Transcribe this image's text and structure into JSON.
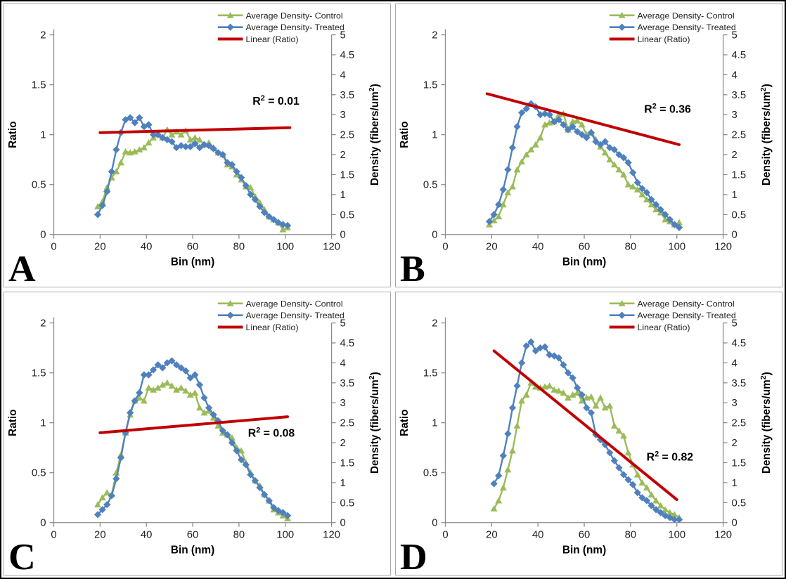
{
  "colors": {
    "control_green": "#9BBB59",
    "treated_blue": "#4F81BD",
    "trend_red": "#C00000",
    "axis_gray": "#8C8C8C",
    "text_dark": "#1F1F1F",
    "panel_border": "#A9A9A9",
    "outer_border": "#000000"
  },
  "legend": [
    {
      "label": "Average Density- Control",
      "color": "#9BBB59",
      "marker": "triangle"
    },
    {
      "label": "Average Density- Treated",
      "color": "#4F81BD",
      "marker": "diamond"
    },
    {
      "label": "Linear (Ratio)",
      "color": "#C00000",
      "marker": "line"
    }
  ],
  "axes": {
    "x": {
      "label": "Bin (nm)",
      "range": [
        0,
        120
      ],
      "ticks": [
        "0",
        "20",
        "40",
        "60",
        "80",
        "100",
        "120"
      ]
    },
    "y_left": {
      "label": "Ratio",
      "range": [
        0,
        2
      ],
      "ticks": [
        "0",
        "0.5",
        "1",
        "1.5",
        "2"
      ]
    },
    "y_right": {
      "label_base": "Density (fibers/um",
      "label_sup": "2",
      "label_end": ")",
      "range": [
        0,
        5
      ],
      "ticks": [
        "0",
        "0.5",
        "1",
        "1.5",
        "2",
        "2.5",
        "3",
        "3.5",
        "4",
        "4.5",
        "5"
      ]
    },
    "grid": "off",
    "legend_position": "top-right-inside"
  },
  "chart_data": [
    {
      "id": "A",
      "type": "line",
      "corner_label": "A",
      "r2_base": "R",
      "r2_sup": "2",
      "r2_rest": " = 0.01",
      "r2_value": 0.01,
      "r2_pos": {
        "x": 96,
        "y": 1.3
      },
      "trendline": {
        "name": "Linear (Ratio)",
        "x": [
          20,
          102
        ],
        "y": [
          1.02,
          1.07
        ]
      },
      "series": [
        {
          "name": "Average Density- Control",
          "marker": "triangle",
          "color": "#9BBB59",
          "x": [
            19,
            21,
            23,
            25,
            27,
            29,
            31,
            33,
            35,
            37,
            39,
            41,
            43,
            45,
            47,
            49,
            51,
            53,
            55,
            57,
            59,
            61,
            63,
            65,
            67,
            69,
            71,
            73,
            75,
            77,
            79,
            81,
            83,
            85,
            87,
            89,
            91,
            93,
            95,
            97,
            99,
            101
          ],
          "y": [
            0.28,
            0.33,
            0.47,
            0.57,
            0.63,
            0.72,
            0.83,
            0.82,
            0.83,
            0.85,
            0.87,
            0.92,
            0.97,
            1.0,
            0.97,
            1.05,
            1.0,
            1.03,
            1.0,
            1.04,
            0.95,
            0.97,
            0.95,
            0.9,
            0.92,
            0.87,
            0.82,
            0.8,
            0.7,
            0.68,
            0.6,
            0.55,
            0.48,
            0.47,
            0.38,
            0.32,
            0.25,
            0.18,
            0.15,
            0.12,
            0.05,
            0.07
          ]
        },
        {
          "name": "Average Density- Treated",
          "marker": "diamond",
          "color": "#4F81BD",
          "x": [
            19,
            21,
            23,
            25,
            27,
            29,
            31,
            33,
            35,
            37,
            39,
            41,
            43,
            45,
            47,
            49,
            51,
            53,
            55,
            57,
            59,
            61,
            63,
            65,
            67,
            69,
            71,
            73,
            75,
            77,
            79,
            81,
            83,
            85,
            87,
            89,
            91,
            93,
            95,
            97,
            99,
            101
          ],
          "y": [
            0.2,
            0.29,
            0.43,
            0.63,
            0.85,
            1.02,
            1.15,
            1.17,
            1.12,
            1.17,
            1.08,
            1.1,
            1.0,
            1.0,
            0.97,
            0.95,
            0.93,
            0.87,
            0.89,
            0.88,
            0.88,
            0.91,
            0.87,
            0.9,
            0.89,
            0.86,
            0.82,
            0.8,
            0.72,
            0.7,
            0.63,
            0.57,
            0.49,
            0.4,
            0.35,
            0.28,
            0.22,
            0.18,
            0.15,
            0.12,
            0.1,
            0.09
          ]
        }
      ]
    },
    {
      "id": "B",
      "type": "line",
      "corner_label": "B",
      "r2_base": "R",
      "r2_sup": "2",
      "r2_rest": " = 0.36",
      "r2_value": 0.36,
      "r2_pos": {
        "x": 96,
        "y": 1.22
      },
      "trendline": {
        "name": "Linear (Ratio)",
        "x": [
          18,
          101
        ],
        "y": [
          1.41,
          0.9
        ]
      },
      "series": [
        {
          "name": "Average Density- Control",
          "marker": "triangle",
          "color": "#9BBB59",
          "x": [
            19,
            21,
            23,
            25,
            27,
            29,
            31,
            33,
            35,
            37,
            39,
            41,
            43,
            45,
            47,
            49,
            51,
            53,
            55,
            57,
            59,
            61,
            63,
            65,
            67,
            69,
            71,
            73,
            75,
            77,
            79,
            81,
            83,
            85,
            87,
            89,
            91,
            93,
            95,
            97,
            99,
            101
          ],
          "y": [
            0.1,
            0.14,
            0.18,
            0.3,
            0.42,
            0.48,
            0.65,
            0.73,
            0.8,
            0.85,
            0.9,
            0.97,
            1.1,
            1.12,
            1.13,
            1.2,
            1.21,
            1.05,
            1.13,
            1.14,
            1.1,
            1.0,
            1.03,
            0.95,
            0.88,
            0.82,
            0.75,
            0.7,
            0.65,
            0.6,
            0.5,
            0.48,
            0.45,
            0.4,
            0.35,
            0.3,
            0.25,
            0.22,
            0.15,
            0.13,
            0.1,
            0.12
          ]
        },
        {
          "name": "Average Density- Treated",
          "marker": "diamond",
          "color": "#4F81BD",
          "x": [
            19,
            21,
            23,
            25,
            27,
            29,
            31,
            33,
            35,
            37,
            39,
            41,
            43,
            45,
            47,
            49,
            51,
            53,
            55,
            57,
            59,
            61,
            63,
            65,
            67,
            69,
            71,
            73,
            75,
            77,
            79,
            81,
            83,
            85,
            87,
            89,
            91,
            93,
            95,
            97,
            99,
            101
          ],
          "y": [
            0.13,
            0.2,
            0.3,
            0.45,
            0.65,
            0.87,
            1.08,
            1.22,
            1.26,
            1.31,
            1.28,
            1.2,
            1.21,
            1.2,
            1.13,
            1.15,
            1.1,
            1.05,
            1.08,
            1.03,
            1.0,
            0.97,
            1.02,
            0.93,
            0.9,
            0.93,
            0.87,
            0.85,
            0.8,
            0.77,
            0.72,
            0.62,
            0.52,
            0.46,
            0.42,
            0.35,
            0.3,
            0.25,
            0.2,
            0.15,
            0.1,
            0.07
          ]
        }
      ]
    },
    {
      "id": "C",
      "type": "line",
      "corner_label": "C",
      "r2_base": "R",
      "r2_sup": "2",
      "r2_rest": " = 0.08",
      "r2_value": 0.08,
      "r2_pos": {
        "x": 94,
        "y": 0.86
      },
      "trendline": {
        "name": "Linear (Ratio)",
        "x": [
          20,
          101
        ],
        "y": [
          0.9,
          1.06
        ]
      },
      "series": [
        {
          "name": "Average Density- Control",
          "marker": "triangle",
          "color": "#9BBB59",
          "x": [
            19,
            21,
            23,
            25,
            27,
            29,
            31,
            33,
            35,
            37,
            39,
            41,
            43,
            45,
            47,
            49,
            51,
            53,
            55,
            57,
            59,
            61,
            63,
            65,
            67,
            69,
            71,
            73,
            75,
            77,
            79,
            81,
            83,
            85,
            87,
            89,
            91,
            93,
            95,
            97,
            99,
            101
          ],
          "y": [
            0.18,
            0.25,
            0.3,
            0.28,
            0.5,
            0.68,
            0.9,
            1.08,
            1.22,
            1.25,
            1.22,
            1.35,
            1.33,
            1.35,
            1.38,
            1.4,
            1.37,
            1.33,
            1.35,
            1.32,
            1.28,
            1.3,
            1.15,
            1.1,
            1.12,
            1.05,
            0.97,
            0.9,
            0.88,
            0.85,
            0.75,
            0.72,
            0.6,
            0.5,
            0.42,
            0.37,
            0.28,
            0.22,
            0.13,
            0.1,
            0.07,
            0.04
          ]
        },
        {
          "name": "Average Density- Treated",
          "marker": "diamond",
          "color": "#4F81BD",
          "x": [
            19,
            21,
            23,
            25,
            27,
            29,
            31,
            33,
            35,
            37,
            39,
            41,
            43,
            45,
            47,
            49,
            51,
            53,
            55,
            57,
            59,
            61,
            63,
            65,
            67,
            69,
            71,
            73,
            75,
            77,
            79,
            81,
            83,
            85,
            87,
            89,
            91,
            93,
            95,
            97,
            99,
            101
          ],
          "y": [
            0.08,
            0.13,
            0.18,
            0.27,
            0.44,
            0.65,
            0.9,
            1.1,
            1.22,
            1.3,
            1.48,
            1.48,
            1.53,
            1.58,
            1.55,
            1.6,
            1.62,
            1.58,
            1.55,
            1.52,
            1.45,
            1.48,
            1.38,
            1.25,
            1.15,
            1.08,
            1.02,
            0.92,
            0.88,
            0.8,
            0.72,
            0.63,
            0.58,
            0.48,
            0.42,
            0.35,
            0.28,
            0.22,
            0.15,
            0.12,
            0.1,
            0.07
          ]
        }
      ]
    },
    {
      "id": "D",
      "type": "line",
      "corner_label": "D",
      "r2_base": "R",
      "r2_sup": "2",
      "r2_rest": " = 0.82",
      "r2_value": 0.82,
      "r2_pos": {
        "x": 97,
        "y": 0.62
      },
      "trendline": {
        "name": "Linear (Ratio)",
        "x": [
          21,
          100
        ],
        "y": [
          1.72,
          0.23
        ]
      },
      "series": [
        {
          "name": "Average Density- Control",
          "marker": "triangle",
          "color": "#9BBB59",
          "x": [
            21,
            23,
            25,
            27,
            29,
            31,
            33,
            35,
            37,
            39,
            41,
            43,
            45,
            47,
            49,
            51,
            53,
            55,
            57,
            59,
            61,
            63,
            65,
            67,
            69,
            71,
            73,
            75,
            77,
            79,
            81,
            83,
            85,
            87,
            89,
            91,
            93,
            95,
            97,
            99,
            101
          ],
          "y": [
            0.14,
            0.22,
            0.35,
            0.53,
            0.72,
            0.97,
            1.22,
            1.28,
            1.4,
            1.36,
            1.35,
            1.36,
            1.37,
            1.33,
            1.32,
            1.3,
            1.25,
            1.28,
            1.3,
            1.22,
            1.25,
            1.26,
            1.17,
            1.25,
            1.15,
            1.17,
            0.97,
            0.92,
            0.87,
            0.7,
            0.58,
            0.48,
            0.4,
            0.35,
            0.28,
            0.22,
            0.17,
            0.13,
            0.1,
            0.08,
            0.05
          ]
        },
        {
          "name": "Average Density- Treated",
          "marker": "diamond",
          "color": "#4F81BD",
          "x": [
            21,
            23,
            25,
            27,
            29,
            31,
            33,
            35,
            37,
            39,
            41,
            43,
            45,
            47,
            49,
            51,
            53,
            55,
            57,
            59,
            61,
            63,
            65,
            67,
            69,
            71,
            73,
            75,
            77,
            79,
            81,
            83,
            85,
            87,
            89,
            91,
            93,
            95,
            97,
            99,
            101
          ],
          "y": [
            0.39,
            0.47,
            0.67,
            0.89,
            1.15,
            1.37,
            1.6,
            1.77,
            1.81,
            1.72,
            1.75,
            1.76,
            1.68,
            1.67,
            1.65,
            1.58,
            1.5,
            1.45,
            1.35,
            1.28,
            1.15,
            1.1,
            0.88,
            0.83,
            0.78,
            0.7,
            0.62,
            0.55,
            0.48,
            0.43,
            0.38,
            0.3,
            0.25,
            0.22,
            0.17,
            0.13,
            0.1,
            0.07,
            0.05,
            0.03,
            0.03
          ]
        }
      ]
    }
  ]
}
